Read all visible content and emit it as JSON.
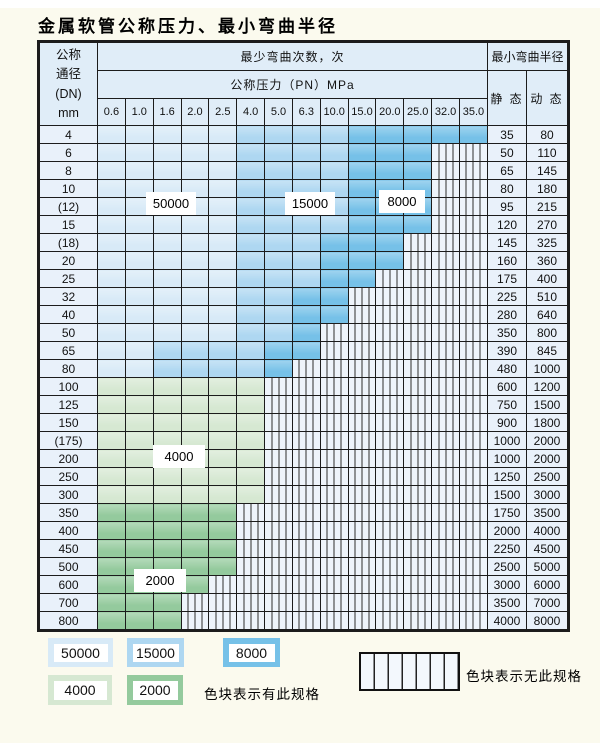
{
  "title": "金属软管公称压力、最小弯曲半径",
  "colors": {
    "c50000": "#d8eaf7",
    "c15000": "#aed7f1",
    "c8000": "#76c1e8",
    "c4000": "#d6e8d2",
    "c2000": "#94ca9d",
    "hatch-bg": "#eef4fb",
    "header-bg": "#e0edf8",
    "plain-bg": "#e9f1fa",
    "border": "#1c1c1c"
  },
  "table": {
    "header": {
      "dn_label_lines": [
        "公称",
        "通径",
        "(DN)",
        "mm"
      ],
      "cycles_label": "最少弯曲次数，次",
      "pressure_label": "公称压力（PN）MPa",
      "radius_label": "最小弯曲半径",
      "static_label": "静 态",
      "dynamic_label": "动 态",
      "pressure_columns": [
        "0.6",
        "1.0",
        "1.6",
        "2.0",
        "2.5",
        "4.0",
        "5.0",
        "6.3",
        "10.0",
        "15.0",
        "20.0",
        "25.0",
        "32.0",
        "35.0"
      ]
    },
    "cell_legend": {
      "A": "50000",
      "B": "15000",
      "C": "8000",
      "D": "4000",
      "E": "2000",
      "X": "无此规格"
    },
    "rows": [
      {
        "dn": "4",
        "cells": "AAAAABBBBCCCCC",
        "static": "35",
        "dynamic": "80"
      },
      {
        "dn": "6",
        "cells": "AAAAABBBBCCCXX",
        "static": "50",
        "dynamic": "110"
      },
      {
        "dn": "8",
        "cells": "AAAAABBBBCCCXX",
        "static": "65",
        "dynamic": "145"
      },
      {
        "dn": "10",
        "cells": "AAAAABBBBCCCXX",
        "static": "80",
        "dynamic": "180"
      },
      {
        "dn": "(12)",
        "cells": "AAAAABBBBCCCXX",
        "static": "95",
        "dynamic": "215"
      },
      {
        "dn": "15",
        "cells": "AAAAABBBBCCCXX",
        "static": "120",
        "dynamic": "270"
      },
      {
        "dn": "(18)",
        "cells": "AAAAABBBCCCXXX",
        "static": "145",
        "dynamic": "325"
      },
      {
        "dn": "20",
        "cells": "AAAAABBBCCCXXX",
        "static": "160",
        "dynamic": "360"
      },
      {
        "dn": "25",
        "cells": "AAAAABBBCCXXXX",
        "static": "175",
        "dynamic": "400"
      },
      {
        "dn": "32",
        "cells": "AAAAABBCCXXXXX",
        "static": "225",
        "dynamic": "510"
      },
      {
        "dn": "40",
        "cells": "AAAAABBCCXXXXX",
        "static": "280",
        "dynamic": "640"
      },
      {
        "dn": "50",
        "cells": "AAAAABBCXXXXXX",
        "static": "350",
        "dynamic": "800"
      },
      {
        "dn": "65",
        "cells": "AABBBBCCXXXXXX",
        "static": "390",
        "dynamic": "845"
      },
      {
        "dn": "80",
        "cells": "AABBBBCXXXXXXX",
        "static": "480",
        "dynamic": "1000"
      },
      {
        "dn": "100",
        "cells": "DDDDDDXXXXXXXX",
        "static": "600",
        "dynamic": "1200"
      },
      {
        "dn": "125",
        "cells": "DDDDDDXXXXXXXX",
        "static": "750",
        "dynamic": "1500"
      },
      {
        "dn": "150",
        "cells": "DDDDDDXXXXXXXX",
        "static": "900",
        "dynamic": "1800"
      },
      {
        "dn": "(175)",
        "cells": "DDDDDDXXXXXXXX",
        "static": "1000",
        "dynamic": "2000"
      },
      {
        "dn": "200",
        "cells": "DDDDDDXXXXXXXX",
        "static": "1000",
        "dynamic": "2000"
      },
      {
        "dn": "250",
        "cells": "DDDDDDXXXXXXXX",
        "static": "1250",
        "dynamic": "2500"
      },
      {
        "dn": "300",
        "cells": "DDDDDDXXXXXXXX",
        "static": "1500",
        "dynamic": "3000"
      },
      {
        "dn": "350",
        "cells": "EEEEEXXXXXXXXX",
        "static": "1750",
        "dynamic": "3500"
      },
      {
        "dn": "400",
        "cells": "EEEEEXXXXXXXXX",
        "static": "2000",
        "dynamic": "4000"
      },
      {
        "dn": "450",
        "cells": "EEEEEXXXXXXXXX",
        "static": "2250",
        "dynamic": "4500"
      },
      {
        "dn": "500",
        "cells": "EEEEEXXXXXXXXX",
        "static": "2500",
        "dynamic": "5000"
      },
      {
        "dn": "600",
        "cells": "EEEEXXXXXXXXXX",
        "static": "3000",
        "dynamic": "6000"
      },
      {
        "dn": "700",
        "cells": "EEEXXXXXXXXXXX",
        "static": "3500",
        "dynamic": "7000"
      },
      {
        "dn": "800",
        "cells": "EEEXXXXXXXXXXX",
        "static": "4000",
        "dynamic": "8000"
      }
    ]
  },
  "overlays": {
    "v50000": "50000",
    "v15000": "15000",
    "v8000": "8000",
    "v4000": "4000",
    "v2000": "2000"
  },
  "legend": {
    "v50000": "50000",
    "v15000": "15000",
    "v8000": "8000",
    "v4000": "4000",
    "v2000": "2000",
    "has_spec_text": "色块表示有此规格",
    "no_spec_text": "色块表示无此规格"
  }
}
